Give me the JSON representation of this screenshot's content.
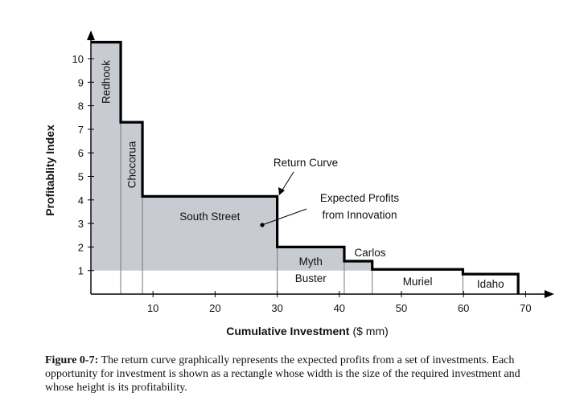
{
  "chart_data": {
    "type": "bar",
    "subtype": "variable-width step chart",
    "xlabel": "Cumulative Investment",
    "xlabel_unit": "($ mm)",
    "ylabel": "Profitablity Index",
    "xlim": [
      0,
      72
    ],
    "ylim": [
      0,
      11
    ],
    "x_ticks": [
      10,
      20,
      30,
      40,
      50,
      60,
      70
    ],
    "y_ticks": [
      1,
      2,
      3,
      4,
      5,
      6,
      7,
      8,
      9,
      10
    ],
    "threshold": 1,
    "colors": {
      "profit_fill": "#c9cbd3",
      "curve": "#000000"
    },
    "bars": [
      {
        "name": "Redhook",
        "x0": 0,
        "x1": 4.8,
        "value": 10.7
      },
      {
        "name": "Chocorua",
        "x0": 4.8,
        "x1": 8.3,
        "value": 7.3
      },
      {
        "name": "South Street",
        "x0": 8.3,
        "x1": 30,
        "value": 4.15
      },
      {
        "name": "Myth Buster",
        "x0": 30,
        "x1": 40.8,
        "value": 2.0
      },
      {
        "name": "Carlos",
        "x0": 40.8,
        "x1": 45.3,
        "value": 1.4
      },
      {
        "name": "Muriel",
        "x0": 45.3,
        "x1": 59.9,
        "value": 1.05
      },
      {
        "name": "Idaho",
        "x0": 59.9,
        "x1": 68.8,
        "value": 0.85
      }
    ],
    "annotations": [
      {
        "text": "Return Curve"
      },
      {
        "text_lines": [
          "Expected Profits",
          "from Innovation"
        ]
      }
    ]
  },
  "caption": {
    "label": "Figure 0-7:",
    "text": " The return curve graphically represents the expected profits from a set of investments. Each opportunity for investment is shown as a rectangle whose width is the size of the required investment and whose height is its profitability."
  }
}
